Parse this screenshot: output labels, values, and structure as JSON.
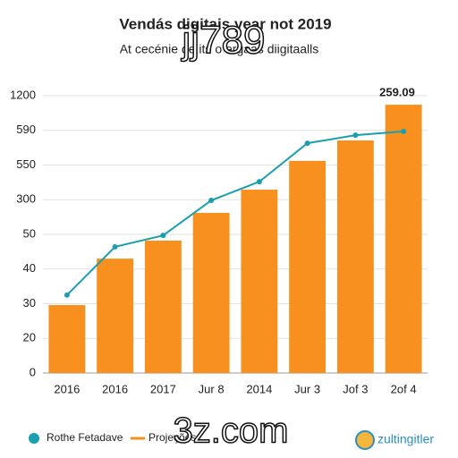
{
  "chart_data": {
    "type": "bar",
    "title": "Vendás digitais year not 2019",
    "subtitle": "At cecénie de its o ergaas diigitaalls",
    "categories": [
      "2016",
      "2016",
      "2017",
      "Jur 8",
      "2014",
      "Jur 3",
      "Jof 3",
      "2of 4"
    ],
    "series": [
      {
        "name": "Projeções",
        "type": "bar",
        "color": "#f7901e",
        "values": [
          1.96,
          3.3,
          3.82,
          4.62,
          5.29,
          6.12,
          6.71,
          7.74
        ]
      },
      {
        "name": "Rothe Fetadave",
        "type": "line",
        "color": "#1a9fae",
        "values": [
          2.25,
          3.64,
          3.97,
          4.98,
          5.52,
          6.63,
          6.86,
          6.97
        ]
      }
    ],
    "ylim": [
      0,
      8
    ],
    "yticks": [
      {
        "value": 0,
        "label": "0"
      },
      {
        "value": 1,
        "label": "20"
      },
      {
        "value": 2,
        "label": "30"
      },
      {
        "value": 3,
        "label": "40"
      },
      {
        "value": 4,
        "label": "50"
      },
      {
        "value": 5,
        "label": "300"
      },
      {
        "value": 6,
        "label": "550"
      },
      {
        "value": 7,
        "label": "590"
      },
      {
        "value": 8,
        "label": "1200"
      }
    ],
    "grid": true,
    "annotation": "259.09",
    "logo": "zultingitler",
    "watermarks": [
      "jj789",
      "3z.com"
    ]
  }
}
